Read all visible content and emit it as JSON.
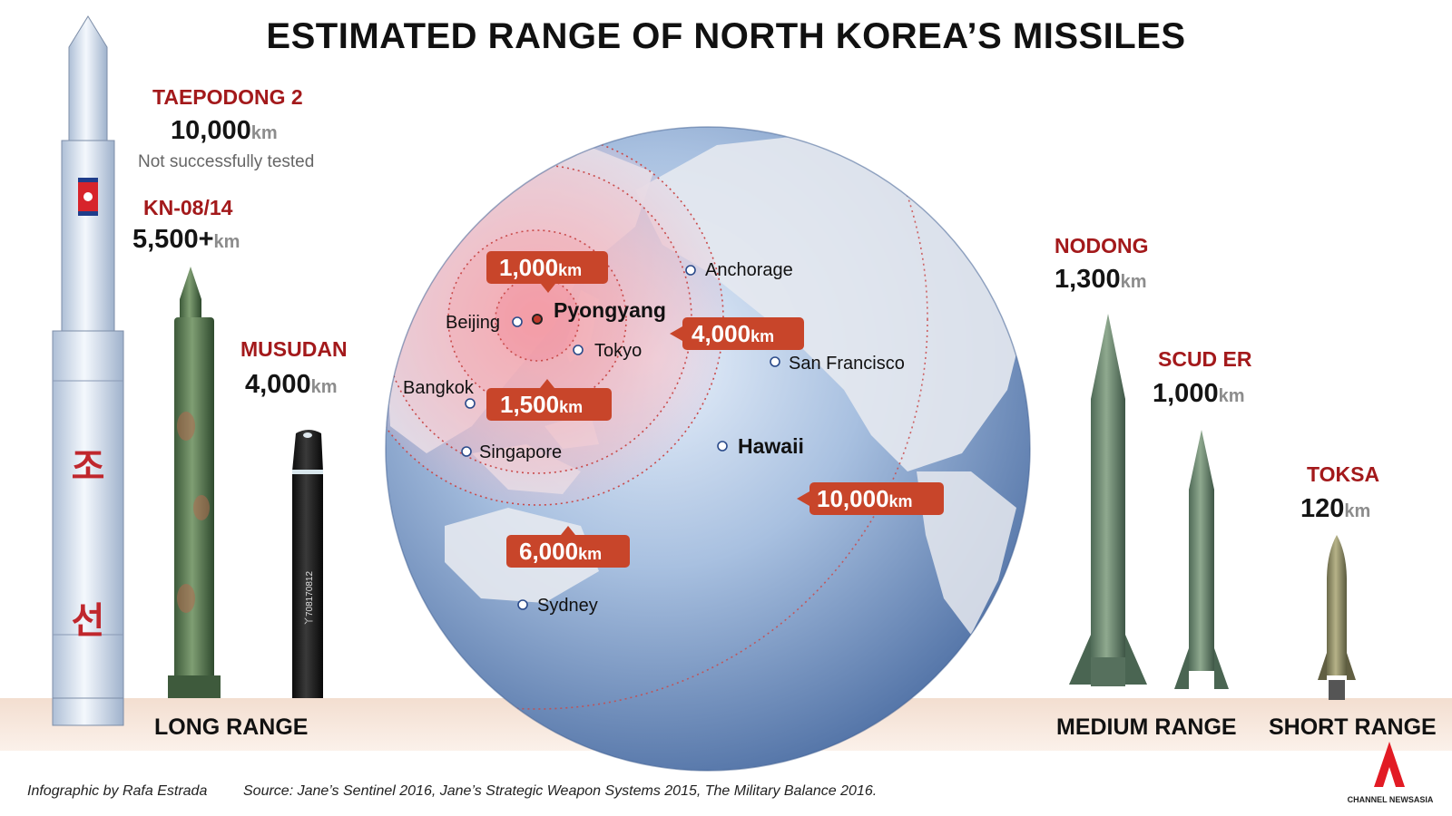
{
  "title": "ESTIMATED RANGE OF NORTH KOREA’S MISSILES",
  "missiles": {
    "taepodong2": {
      "name": "TAEPODONG 2",
      "value": "10,000",
      "unit": "km",
      "note": "Not successfully tested"
    },
    "kn0814": {
      "name": "KN-08/14",
      "value": "5,500+",
      "unit": "km"
    },
    "musudan": {
      "name": "MUSUDAN",
      "value": "4,000",
      "unit": "km"
    },
    "nodong": {
      "name": "NODONG",
      "value": "1,300",
      "unit": "km"
    },
    "scud_er": {
      "name": "SCUD ER",
      "value": "1,000",
      "unit": "km"
    },
    "toksa": {
      "name": "TOKSA",
      "value": "120",
      "unit": "km"
    }
  },
  "rocket_text": {
    "korean_top": "조",
    "korean_bottom": "선",
    "serial": "丫708170812"
  },
  "categories": {
    "long": "LONG RANGE",
    "medium": "MEDIUM RANGE",
    "short": "SHORT RANGE"
  },
  "rings": [
    {
      "value": "1,000",
      "unit": "km"
    },
    {
      "value": "1,500",
      "unit": "km"
    },
    {
      "value": "4,000",
      "unit": "km"
    },
    {
      "value": "6,000",
      "unit": "km"
    },
    {
      "value": "10,000",
      "unit": "km"
    }
  ],
  "cities": {
    "pyongyang": "Pyongyang",
    "beijing": "Beijing",
    "tokyo": "Tokyo",
    "bangkok": "Bangkok",
    "singapore": "Singapore",
    "sydney": "Sydney",
    "anchorage": "Anchorage",
    "san_francisco": "San Francisco",
    "hawaii": "Hawaii"
  },
  "footer": {
    "credit": "Infographic by Rafa Estrada",
    "source": "Source: Jane’s Sentinel 2016, Jane’s Strategic Weapon Systems 2015, The Military Balance 2016."
  },
  "logo": {
    "text": "CHANNEL NEWSASIA"
  },
  "colors": {
    "accent_red": "#a3191b",
    "label_orange": "#c8452a",
    "globe_blue": "#5f82b8",
    "ground": "#f3ded0"
  }
}
